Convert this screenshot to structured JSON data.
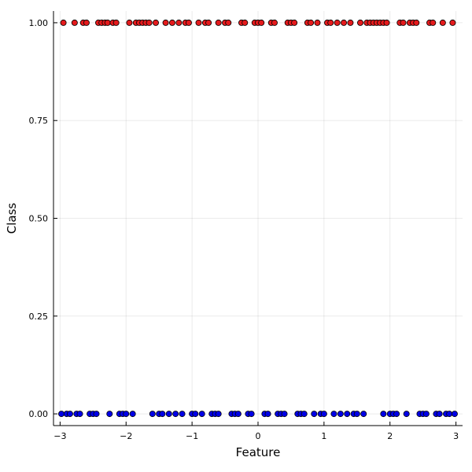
{
  "chart_data": {
    "type": "scatter",
    "xlabel": "Feature",
    "ylabel": "Class",
    "xlim": [
      -3.1,
      3.1
    ],
    "ylim": [
      -0.03,
      1.03
    ],
    "xticks": [
      -3,
      -2,
      -1,
      0,
      1,
      2,
      3
    ],
    "yticks": [
      0.0,
      0.25,
      0.5,
      0.75,
      1.0
    ],
    "xtick_labels": [
      "−3",
      "−2",
      "−1",
      "0",
      "1",
      "2",
      "3"
    ],
    "ytick_labels": [
      "0.00",
      "0.25",
      "0.50",
      "0.75",
      "1.00"
    ],
    "grid": true,
    "legend": "none",
    "series": [
      {
        "color": "#e41a1c",
        "y": 1,
        "x": [
          -2.95,
          -2.78,
          -2.65,
          -2.6,
          -2.42,
          -2.37,
          -2.32,
          -2.28,
          -2.2,
          -2.15,
          -1.95,
          -1.85,
          -1.8,
          -1.75,
          -1.7,
          -1.65,
          -1.55,
          -1.4,
          -1.3,
          -1.2,
          -1.1,
          -1.05,
          -0.9,
          -0.8,
          -0.75,
          -0.6,
          -0.5,
          -0.45,
          -0.25,
          -0.2,
          -0.05,
          0.0,
          0.05,
          0.2,
          0.25,
          0.45,
          0.5,
          0.55,
          0.75,
          0.8,
          0.9,
          1.05,
          1.1,
          1.2,
          1.3,
          1.4,
          1.55,
          1.65,
          1.7,
          1.75,
          1.8,
          1.85,
          1.9,
          1.95,
          2.15,
          2.2,
          2.3,
          2.35,
          2.4,
          2.6,
          2.65,
          2.8,
          2.95
        ]
      },
      {
        "color": "#0000e6",
        "y": 0,
        "x": [
          -2.98,
          -2.9,
          -2.85,
          -2.75,
          -2.7,
          -2.55,
          -2.5,
          -2.45,
          -2.25,
          -2.1,
          -2.05,
          -2.0,
          -1.9,
          -1.6,
          -1.5,
          -1.45,
          -1.35,
          -1.25,
          -1.15,
          -1.0,
          -0.95,
          -0.85,
          -0.7,
          -0.65,
          -0.6,
          -0.4,
          -0.35,
          -0.3,
          -0.15,
          -0.1,
          0.1,
          0.15,
          0.3,
          0.35,
          0.4,
          0.6,
          0.65,
          0.7,
          0.85,
          0.95,
          1.0,
          1.15,
          1.25,
          1.35,
          1.45,
          1.5,
          1.6,
          1.9,
          2.0,
          2.05,
          2.1,
          2.25,
          2.45,
          2.5,
          2.55,
          2.7,
          2.75,
          2.85,
          2.9,
          2.98
        ]
      }
    ]
  }
}
